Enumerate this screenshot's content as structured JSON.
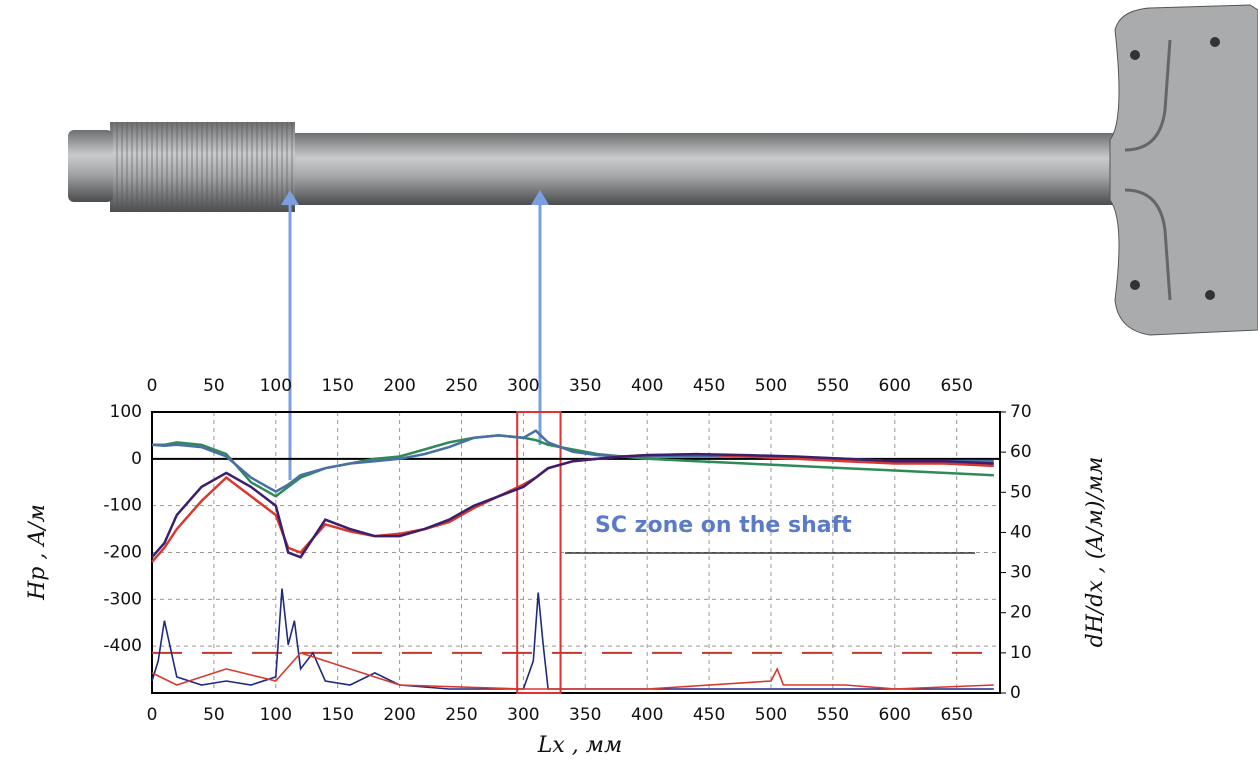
{
  "chart_data": {
    "type": "line",
    "x_label": "Lx , мм",
    "y_label": "Hp , A/м",
    "y2_label": "dH/dx , (A/м)/мм",
    "xlim": [
      0,
      685
    ],
    "xticks": [
      0,
      50,
      100,
      150,
      200,
      250,
      300,
      350,
      400,
      450,
      500,
      550,
      600,
      650
    ],
    "ylim": [
      -500,
      100
    ],
    "yticks": [
      -400,
      -300,
      -200,
      -100,
      0,
      100
    ],
    "y2lim": [
      0,
      70
    ],
    "y2ticks": [
      0,
      10,
      20,
      30,
      40,
      50,
      60,
      70
    ],
    "grid": true,
    "series": [
      {
        "color": "#2e8b57",
        "x": [
          0,
          10,
          20,
          40,
          60,
          80,
          100,
          110,
          120,
          140,
          160,
          180,
          200,
          220,
          240,
          260,
          280,
          300,
          310,
          320,
          340,
          360,
          380,
          400,
          440,
          480,
          520,
          560,
          600,
          640,
          680
        ],
        "values": [
          30,
          30,
          35,
          30,
          10,
          -50,
          -80,
          -60,
          -40,
          -20,
          -10,
          0,
          5,
          20,
          35,
          45,
          50,
          45,
          40,
          30,
          20,
          10,
          5,
          0,
          -5,
          -10,
          -15,
          -20,
          -25,
          -30,
          -35
        ]
      },
      {
        "color": "#4a6fa5",
        "x": [
          0,
          10,
          20,
          40,
          60,
          80,
          100,
          110,
          120,
          140,
          160,
          180,
          200,
          220,
          240,
          260,
          280,
          300,
          310,
          320,
          340,
          360,
          380,
          400,
          440,
          480,
          520,
          560,
          600,
          640,
          680
        ],
        "values": [
          30,
          28,
          30,
          25,
          5,
          -40,
          -70,
          -55,
          -35,
          -20,
          -10,
          -5,
          0,
          10,
          25,
          45,
          50,
          45,
          60,
          35,
          15,
          8,
          5,
          5,
          5,
          5,
          3,
          0,
          -5,
          -5,
          -5
        ]
      },
      {
        "color": "#d9382c",
        "x": [
          0,
          10,
          20,
          40,
          60,
          80,
          100,
          110,
          120,
          140,
          160,
          180,
          200,
          220,
          240,
          260,
          280,
          300,
          310,
          320,
          340,
          360,
          380,
          400,
          440,
          480,
          520,
          560,
          600,
          640,
          680
        ],
        "values": [
          -220,
          -190,
          -150,
          -90,
          -40,
          -80,
          -120,
          -190,
          -200,
          -140,
          -155,
          -165,
          -160,
          -150,
          -135,
          -105,
          -80,
          -55,
          -40,
          -20,
          -5,
          0,
          5,
          8,
          10,
          5,
          0,
          -5,
          -10,
          -10,
          -15
        ]
      },
      {
        "color": "#3b1f6e",
        "x": [
          0,
          10,
          20,
          40,
          60,
          80,
          100,
          110,
          120,
          140,
          160,
          180,
          200,
          220,
          240,
          260,
          280,
          300,
          310,
          320,
          340,
          360,
          380,
          400,
          440,
          480,
          520,
          560,
          600,
          640,
          680
        ],
        "values": [
          -210,
          -180,
          -120,
          -60,
          -30,
          -60,
          -100,
          -200,
          -210,
          -130,
          -150,
          -165,
          -165,
          -150,
          -130,
          -100,
          -80,
          -60,
          -40,
          -20,
          -5,
          0,
          5,
          8,
          10,
          8,
          5,
          0,
          -5,
          -5,
          -10
        ]
      },
      {
        "color": "#1f2a80",
        "axis": "y2",
        "x": [
          0,
          5,
          10,
          20,
          40,
          60,
          80,
          100,
          105,
          110,
          115,
          120,
          130,
          140,
          160,
          180,
          200,
          240,
          280,
          300,
          308,
          312,
          316,
          320,
          340,
          400,
          500,
          600,
          680
        ],
        "values": [
          3,
          8,
          18,
          4,
          2,
          3,
          2,
          4,
          26,
          12,
          18,
          6,
          10,
          3,
          2,
          5,
          2,
          1,
          1,
          1,
          8,
          25,
          12,
          1,
          1,
          1,
          1,
          1,
          1
        ]
      },
      {
        "color": "#d9382c",
        "axis": "y2",
        "x": [
          0,
          20,
          60,
          100,
          120,
          140,
          200,
          300,
          400,
          500,
          505,
          510,
          560,
          600,
          680
        ],
        "values": [
          5,
          2,
          6,
          3,
          10,
          8,
          2,
          1,
          1,
          3,
          6,
          2,
          2,
          1,
          2
        ]
      }
    ],
    "reference_lines": [
      {
        "axis": "y2",
        "value": 10,
        "color": "#c0392b"
      },
      {
        "axis": "y",
        "value": 0,
        "color": "#000000"
      }
    ],
    "highlight": {
      "xlim": [
        295,
        330
      ],
      "color": "#e03030"
    },
    "annotation": "SC zone on the shaft"
  }
}
